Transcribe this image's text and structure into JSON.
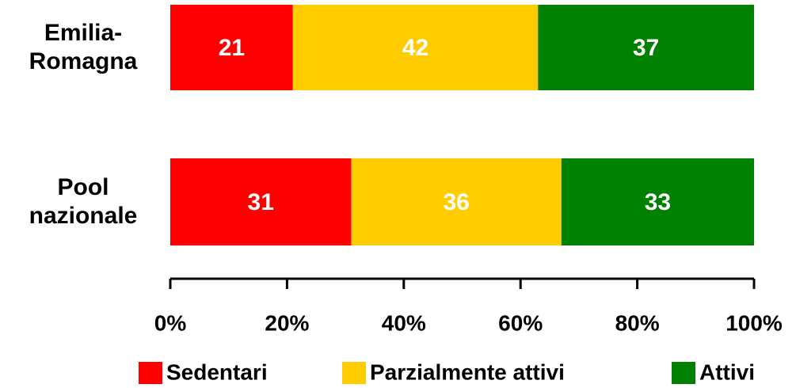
{
  "chart_data": {
    "type": "stacked-bar-horizontal",
    "categories": [
      "Emilia-Romagna",
      "Pool nazionale"
    ],
    "series": [
      {
        "name": "Sedentari",
        "color": "#ff0000",
        "values": [
          21,
          31
        ]
      },
      {
        "name": "Parzialmente attivi",
        "color": "#ffcc00",
        "values": [
          42,
          36
        ]
      },
      {
        "name": "Attivi",
        "color": "#008000",
        "values": [
          37,
          33
        ]
      }
    ],
    "xlim": [
      0,
      100
    ],
    "xticks": [
      {
        "value": 0,
        "label": "0%"
      },
      {
        "value": 20,
        "label": "20%"
      },
      {
        "value": 40,
        "label": "40%"
      },
      {
        "value": 60,
        "label": "60%"
      },
      {
        "value": 80,
        "label": "80%"
      },
      {
        "value": 100,
        "label": "100%"
      }
    ],
    "legend": "bottom"
  }
}
